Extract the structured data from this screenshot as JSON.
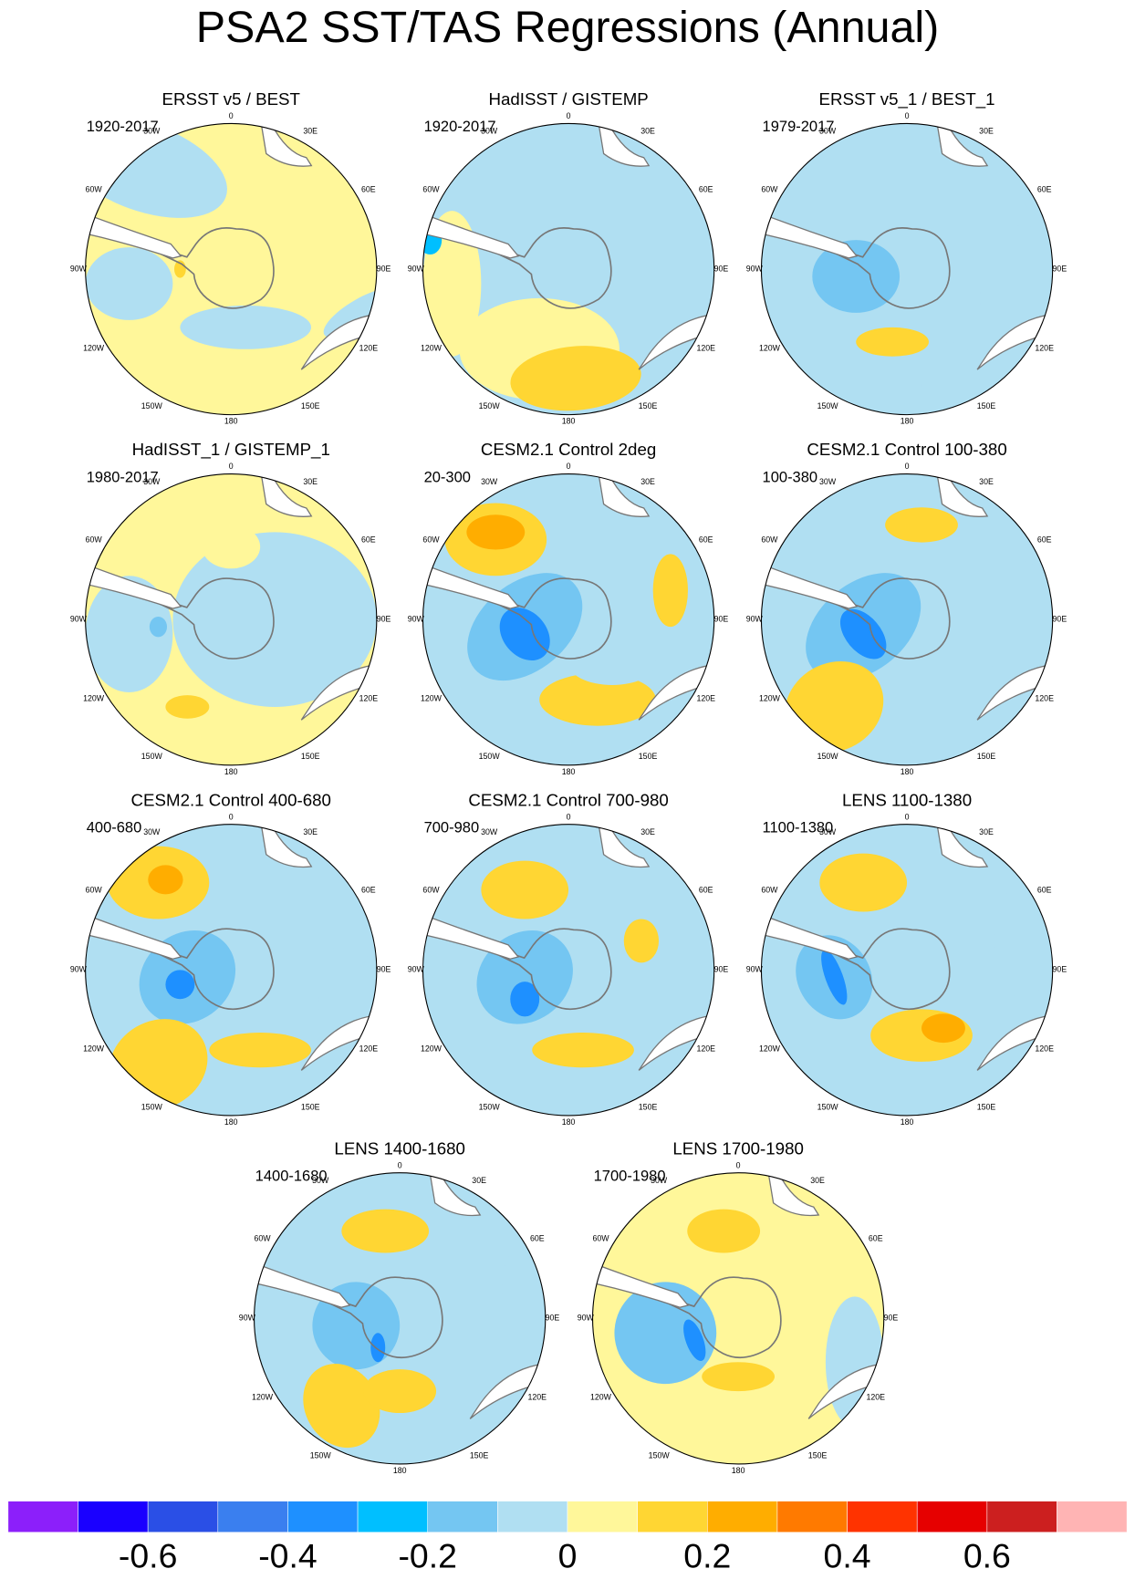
{
  "title": "PSA2 SST/TAS Regressions (Annual)",
  "longitude_labels": [
    "0",
    "30E",
    "60E",
    "90E",
    "120E",
    "150E",
    "180",
    "150W",
    "120W",
    "90W",
    "60W",
    "30W"
  ],
  "panels": [
    {
      "title": "ERSST v5 / BEST",
      "period": "1920-2017"
    },
    {
      "title": "HadISST / GISTEMP",
      "period": "1920-2017"
    },
    {
      "title": "ERSST v5_1 / BEST_1",
      "period": "1979-2017"
    },
    {
      "title": "HadISST_1 / GISTEMP_1",
      "period": "1980-2017"
    },
    {
      "title": "CESM2.1 Control 2deg",
      "period": "20-300"
    },
    {
      "title": "CESM2.1 Control 100-380",
      "period": "100-380"
    },
    {
      "title": "CESM2.1 Control 400-680",
      "period": "400-680"
    },
    {
      "title": "CESM2.1 Control 700-980",
      "period": "700-980"
    },
    {
      "title": "LENS 1100-1380",
      "period": "1100-1380"
    },
    {
      "title": "LENS 1400-1680",
      "period": "1400-1680"
    },
    {
      "title": "LENS 1700-1980",
      "period": "1700-1980"
    }
  ],
  "colorbar": {
    "colors": [
      "#8c1ffa",
      "#1a00ff",
      "#2a4fe6",
      "#3a7fef",
      "#1e90ff",
      "#00bfff",
      "#74c6f2",
      "#b0dff2",
      "#fff79a",
      "#ffd633",
      "#ffad00",
      "#ff7a00",
      "#ff3300",
      "#e60000",
      "#cc1f1f",
      "#ffb4b4"
    ],
    "ticks": [
      -0.6,
      -0.4,
      -0.2,
      0,
      0.2,
      0.4,
      0.6
    ]
  }
}
